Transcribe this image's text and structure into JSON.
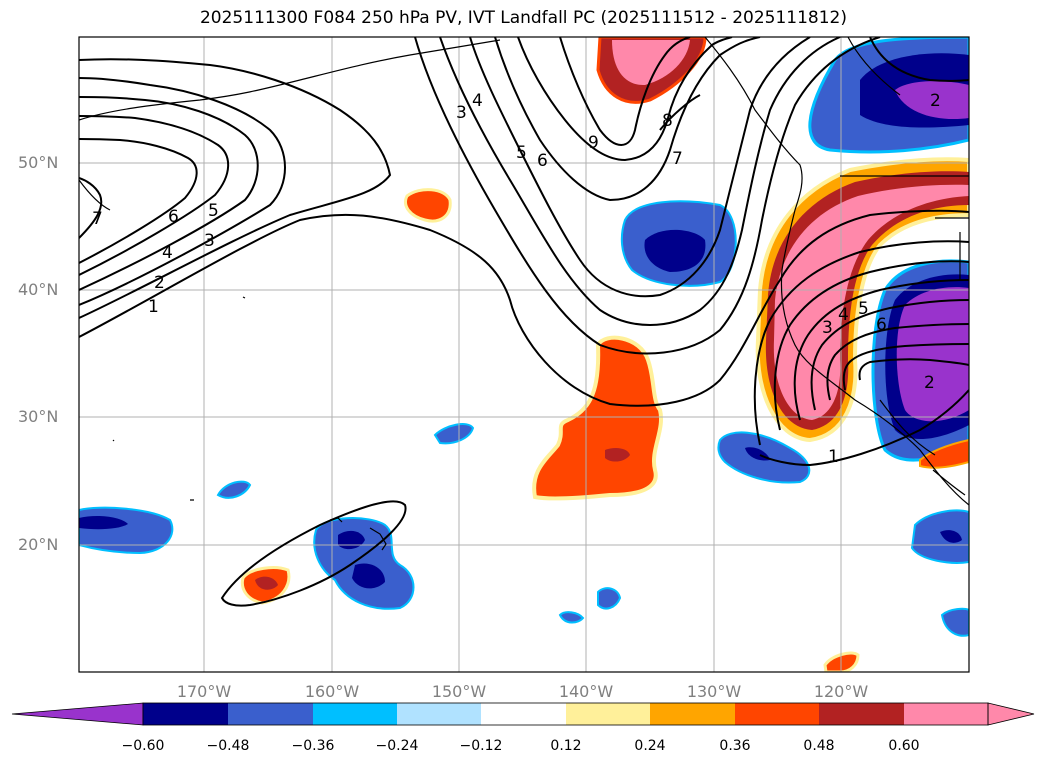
{
  "title": "2025111300 F084 250 hPa PV, IVT Landfall PC (2025111512 - 2025111812)",
  "lat_labels": [
    "50°N",
    "40°N",
    "30°N",
    "20°N"
  ],
  "lon_labels": [
    "170°W",
    "160°W",
    "150°W",
    "140°W",
    "130°W",
    "120°W"
  ],
  "contour_labels": [
    "7",
    "6",
    "5",
    "4",
    "3",
    "2",
    "1",
    "3",
    "4",
    "5",
    "6",
    "9",
    "8",
    "7",
    "1",
    "3",
    "4",
    "5",
    "6",
    "2",
    "2"
  ],
  "colorbar": {
    "ticks": [
      "−0.60",
      "−0.48",
      "−0.36",
      "−0.24",
      "−0.12",
      "0.12",
      "0.24",
      "0.36",
      "0.48",
      "0.60"
    ],
    "colors": [
      "#9933cc",
      "#00008b",
      "#3a5fcd",
      "#00bfff",
      "#b0e2ff",
      "#ffffff",
      "#fff09a",
      "#ffa500",
      "#ff4500",
      "#b22222",
      "#ff88aa",
      "#ff88aa"
    ]
  },
  "palette": {
    "purple": "#9933cc",
    "navy": "#00008b",
    "royal": "#3a5fcd",
    "sky": "#00bfff",
    "light": "#b0e2ff",
    "yellow": "#fff09a",
    "orange": "#ffa500",
    "redorange": "#ff4500",
    "firebrick": "#b22222",
    "pink": "#ff88aa"
  }
}
